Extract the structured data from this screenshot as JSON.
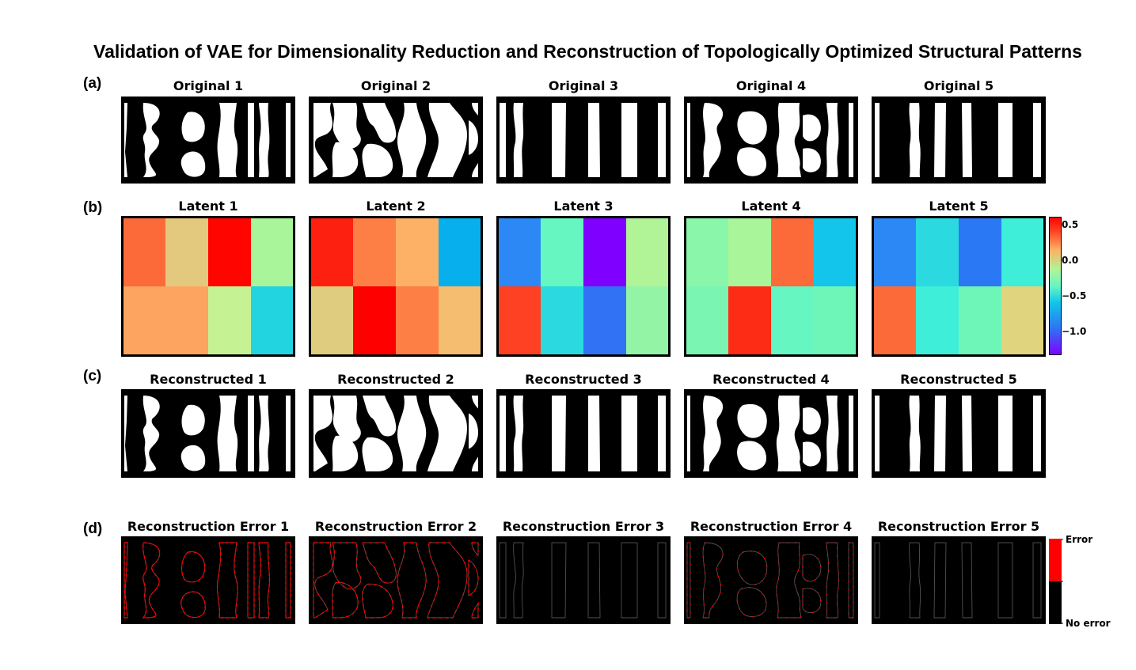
{
  "title": "Validation of VAE for Dimensionality Reduction and Reconstruction of Topologically Optimized Structural Patterns",
  "rows": {
    "a": {
      "label": "(a)",
      "panels": [
        {
          "title": "Original 1",
          "pattern": 1
        },
        {
          "title": "Original 2",
          "pattern": 2
        },
        {
          "title": "Original 3",
          "pattern": 3
        },
        {
          "title": "Original 4",
          "pattern": 4
        },
        {
          "title": "Original 5",
          "pattern": 5
        }
      ]
    },
    "b": {
      "label": "(b)",
      "panels": [
        {
          "title": "Latent 1",
          "cells": [
            [
              "#fd6a3a",
              "#e3c97e",
              "#ff0500",
              "#a8f59a"
            ],
            [
              "#fda461",
              "#fda461",
              "#c5f293",
              "#22d3e0"
            ]
          ]
        },
        {
          "title": "Latent 2",
          "cells": [
            [
              "#fd1f0f",
              "#fd7f45",
              "#fdb166",
              "#07b0ec"
            ],
            [
              "#e0cc7e",
              "#ff0000",
              "#fd7f45",
              "#f5bd6f"
            ]
          ]
        },
        {
          "title": "Latent 3",
          "cells": [
            [
              "#2b88f4",
              "#66f6c2",
              "#7f00ff",
              "#b1f497"
            ],
            [
              "#fd4122",
              "#2bdae0",
              "#3171f4",
              "#94f4a6"
            ]
          ]
        },
        {
          "title": "Latent 4",
          "cells": [
            [
              "#89f6a9",
              "#a8f59a",
              "#fd6a3a",
              "#13c5ea"
            ],
            [
              "#7af6b2",
              "#fd2c14",
              "#66f6c2",
              "#6ef6b8"
            ]
          ]
        },
        {
          "title": "Latent 5",
          "cells": [
            [
              "#2b88f4",
              "#2bdae0",
              "#2b78f4",
              "#3eeed8"
            ],
            [
              "#fd6a3a",
              "#3eeed8",
              "#6ef6b8",
              "#e0d47e"
            ]
          ]
        }
      ],
      "colorbar": {
        "ticks": [
          "0.5",
          "0.0",
          "−0.5",
          "−1.0"
        ]
      }
    },
    "c": {
      "label": "(c)",
      "panels": [
        {
          "title": "Reconstructed 1",
          "pattern": 1
        },
        {
          "title": "Reconstructed 2",
          "pattern": 2
        },
        {
          "title": "Reconstructed 3",
          "pattern": 3
        },
        {
          "title": "Reconstructed 4",
          "pattern": 4
        },
        {
          "title": "Reconstructed 5",
          "pattern": 5
        }
      ]
    },
    "d": {
      "label": "(d)",
      "panels": [
        {
          "title": "Reconstruction Error 1",
          "pattern": 1,
          "error_level": 0.9
        },
        {
          "title": "Reconstruction Error 2",
          "pattern": 2,
          "error_level": 0.7
        },
        {
          "title": "Reconstruction Error 3",
          "pattern": 3,
          "error_level": 0.05
        },
        {
          "title": "Reconstruction Error 4",
          "pattern": 4,
          "error_level": 0.35
        },
        {
          "title": "Reconstruction Error 5",
          "pattern": 5,
          "error_level": 0.02
        }
      ],
      "colorbar": {
        "top_label": "Error",
        "bottom_label": "No error",
        "colors": [
          "#ff0000",
          "#000000"
        ]
      }
    }
  }
}
